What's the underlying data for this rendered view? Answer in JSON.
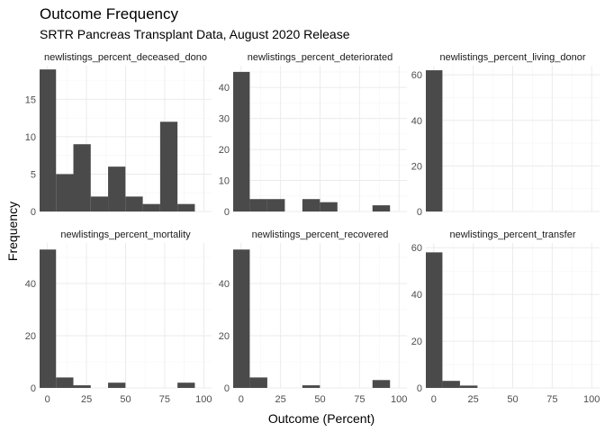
{
  "chart_data": {
    "type": "bar",
    "title": "Outcome Frequency",
    "subtitle": "SRTR Pancreas Transplant Data, August 2020 Release",
    "xlabel": "Outcome (Percent)",
    "ylabel": "Frequency",
    "grid": true,
    "bin_width": 11.1,
    "panels": [
      {
        "name": "newlistings_percent_deceased_dono",
        "xlim": [
          -5,
          105
        ],
        "ylim": [
          0,
          19.5
        ],
        "yticks": [
          0,
          5,
          10,
          15
        ],
        "xticks": [],
        "bins": [
          {
            "x0": -5.5,
            "x1": 5.5,
            "count": 19
          },
          {
            "x0": 5.5,
            "x1": 16.6,
            "count": 5
          },
          {
            "x0": 16.6,
            "x1": 27.7,
            "count": 9
          },
          {
            "x0": 27.7,
            "x1": 38.8,
            "count": 2
          },
          {
            "x0": 38.8,
            "x1": 49.9,
            "count": 6
          },
          {
            "x0": 49.9,
            "x1": 61.0,
            "count": 2
          },
          {
            "x0": 61.0,
            "x1": 72.1,
            "count": 1
          },
          {
            "x0": 72.1,
            "x1": 83.2,
            "count": 12
          },
          {
            "x0": 83.2,
            "x1": 94.3,
            "count": 1
          }
        ]
      },
      {
        "name": "newlistings_percent_deteriorated",
        "xlim": [
          -5,
          105
        ],
        "ylim": [
          0,
          47
        ],
        "yticks": [
          0,
          10,
          20,
          30,
          40
        ],
        "xticks": [],
        "bins": [
          {
            "x0": -5.5,
            "x1": 5.5,
            "count": 45
          },
          {
            "x0": 5.5,
            "x1": 16.6,
            "count": 4
          },
          {
            "x0": 16.6,
            "x1": 27.7,
            "count": 4
          },
          {
            "x0": 27.7,
            "x1": 38.8,
            "count": 0
          },
          {
            "x0": 38.8,
            "x1": 49.9,
            "count": 4
          },
          {
            "x0": 49.9,
            "x1": 61.0,
            "count": 3
          },
          {
            "x0": 61.0,
            "x1": 72.1,
            "count": 0
          },
          {
            "x0": 72.1,
            "x1": 83.2,
            "count": 0
          },
          {
            "x0": 83.2,
            "x1": 94.3,
            "count": 2
          }
        ]
      },
      {
        "name": "newlistings_percent_living_donor",
        "xlim": [
          -5,
          105
        ],
        "ylim": [
          0,
          64
        ],
        "yticks": [
          0,
          20,
          40,
          60
        ],
        "xticks": [],
        "bins": [
          {
            "x0": -5.5,
            "x1": 5.5,
            "count": 62
          }
        ]
      },
      {
        "name": "newlistings_percent_mortality",
        "xlim": [
          -5,
          105
        ],
        "ylim": [
          0,
          55.5
        ],
        "yticks": [
          0,
          20,
          40
        ],
        "xticks": [
          0,
          25,
          50,
          75,
          100
        ],
        "bins": [
          {
            "x0": -5.5,
            "x1": 5.5,
            "count": 53
          },
          {
            "x0": 5.5,
            "x1": 16.6,
            "count": 4
          },
          {
            "x0": 16.6,
            "x1": 27.7,
            "count": 1
          },
          {
            "x0": 27.7,
            "x1": 38.8,
            "count": 0
          },
          {
            "x0": 38.8,
            "x1": 49.9,
            "count": 2
          },
          {
            "x0": 49.9,
            "x1": 61.0,
            "count": 0
          },
          {
            "x0": 61.0,
            "x1": 72.1,
            "count": 0
          },
          {
            "x0": 72.1,
            "x1": 83.2,
            "count": 0
          },
          {
            "x0": 83.2,
            "x1": 94.3,
            "count": 2
          }
        ]
      },
      {
        "name": "newlistings_percent_recovered",
        "xlim": [
          -5,
          105
        ],
        "ylim": [
          0,
          55.5
        ],
        "yticks": [
          0,
          20,
          40
        ],
        "xticks": [
          0,
          25,
          50,
          75,
          100
        ],
        "bins": [
          {
            "x0": -5.5,
            "x1": 5.5,
            "count": 53
          },
          {
            "x0": 5.5,
            "x1": 16.6,
            "count": 4
          },
          {
            "x0": 16.6,
            "x1": 27.7,
            "count": 0
          },
          {
            "x0": 27.7,
            "x1": 38.8,
            "count": 0
          },
          {
            "x0": 38.8,
            "x1": 49.9,
            "count": 1
          },
          {
            "x0": 49.9,
            "x1": 61.0,
            "count": 0
          },
          {
            "x0": 61.0,
            "x1": 72.1,
            "count": 0
          },
          {
            "x0": 72.1,
            "x1": 83.2,
            "count": 0
          },
          {
            "x0": 83.2,
            "x1": 94.3,
            "count": 3
          }
        ]
      },
      {
        "name": "newlistings_percent_transfer",
        "xlim": [
          -5,
          105
        ],
        "ylim": [
          0,
          62
        ],
        "yticks": [
          0,
          20,
          40,
          60
        ],
        "xticks": [
          0,
          25,
          50,
          75,
          100
        ],
        "bins": [
          {
            "x0": -5.5,
            "x1": 5.5,
            "count": 58
          },
          {
            "x0": 5.5,
            "x1": 16.6,
            "count": 3
          },
          {
            "x0": 16.6,
            "x1": 27.7,
            "count": 1
          }
        ]
      }
    ]
  }
}
